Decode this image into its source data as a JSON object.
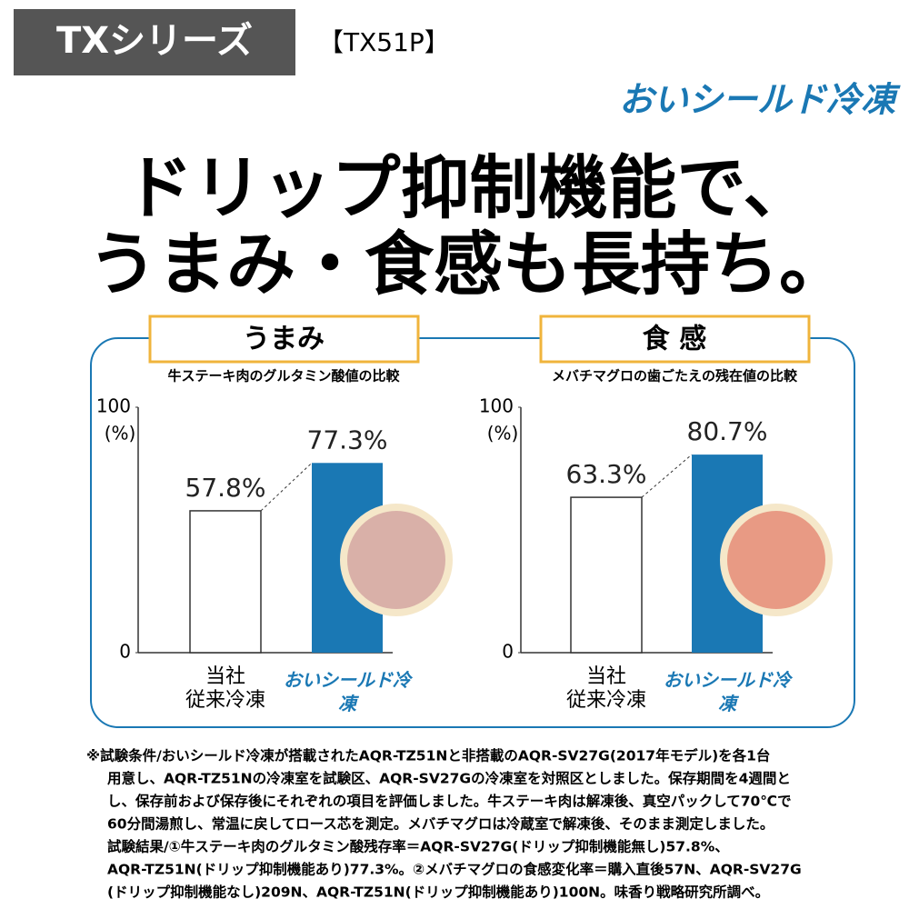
{
  "header": {
    "series": "TXシリーズ",
    "model": "【TX51P】",
    "logo": "おいシールド冷凍"
  },
  "headline": [
    "ドリップ抑制機能で、",
    "うまみ・食感も長持ち。"
  ],
  "chart_data": [
    {
      "type": "bar",
      "heading": "うまみ",
      "title": "牛ステーキ肉のグルタミン酸値の比較",
      "y_label": "(%)",
      "categories": [
        "当社\n従来冷凍",
        "おいシールド冷凍"
      ],
      "values": [
        57.8,
        77.3
      ],
      "value_labels": [
        "57.8%",
        "77.3%"
      ],
      "colors": [
        "#ffffff",
        "#1a78b4"
      ],
      "ylim": [
        0,
        100
      ],
      "yticks": [
        0,
        100
      ]
    },
    {
      "type": "bar",
      "heading": "食 感",
      "title": "メバチマグロの歯ごたえの残在値の比較",
      "y_label": "(%)",
      "categories": [
        "当社\n従来冷凍",
        "おいシールド冷凍"
      ],
      "values": [
        63.3,
        80.7
      ],
      "value_labels": [
        "63.3%",
        "80.7%"
      ],
      "colors": [
        "#ffffff",
        "#1a78b4"
      ],
      "ylim": [
        0,
        100
      ],
      "yticks": [
        0,
        100
      ]
    }
  ],
  "footnote": [
    "※試験条件/おいシールド冷凍が搭載されたAQR-TZ51Nと非搭載のAQR-SV27G(2017年モデル)を各1台",
    "用意し、AQR-TZ51Nの冷凍室を試験区、AQR-SV27Gの冷凍室を対照区としました。保存期間を4週間と",
    "し、保存前および保存後にそれぞれの項目を評価しました。牛ステーキ肉は解凍後、真空パックして70℃で",
    "60分間湯煎し、常温に戻してロース芯を測定。メバチマグロは冷蔵室で解凍後、そのまま測定しました。",
    "試験結果/①牛ステーキ肉のグルタミン酸残存率＝AQR-SV27G(ドリップ抑制機能無し)57.8%、",
    "AQR-TZ51N(ドリップ抑制機能あり)77.3%。②メバチマグロの食感変化率＝購入直後57N、AQR-SV27G",
    "(ドリップ抑制機能なし)209N、AQR-TZ51N(ドリップ抑制機能あり)100N。味香り戦略研究所調べ。"
  ]
}
